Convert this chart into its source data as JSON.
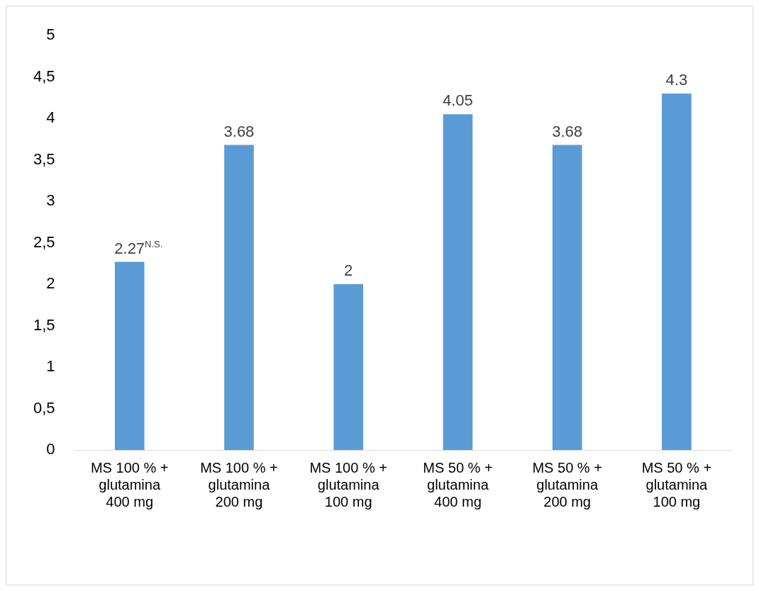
{
  "chart_data": {
    "type": "bar",
    "categories": [
      "MS 100 % + glutamina 400 mg",
      "MS 100 % + glutamina 200 mg",
      "MS 100 % + glutamina 100 mg",
      "MS 50 % + glutamina 400 mg",
      "MS 50 % + glutamina 200 mg",
      "MS 50 % + glutamina 100 mg"
    ],
    "values": [
      2.27,
      3.68,
      2,
      4.05,
      3.68,
      4.3
    ],
    "color": "#5b9bd5",
    "value_labels": [
      "2.27$^{N.S.}$",
      "3.68",
      "2",
      "4.05",
      "3.68",
      "4.3"
    ],
    "ylim": [
      0,
      5
    ],
    "yticks": [
      0,
      {
        "value": 0.5,
        "label": "0,5"
      },
      1,
      {
        "value": 1.5,
        "label": "1,5"
      },
      2,
      {
        "value": 2.5,
        "label": "2,5"
      },
      3,
      {
        "value": 3.5,
        "label": "3,5"
      },
      4,
      {
        "value": 4.5,
        "label": "4,5"
      },
      5
    ],
    "grid": false,
    "legend": false
  }
}
